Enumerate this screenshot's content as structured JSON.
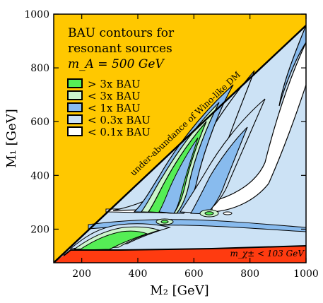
{
  "chart_data": {
    "type": "contour",
    "title_lines": [
      "BAU contours for",
      "resonant sources",
      "m_A = 500 GeV"
    ],
    "xlabel": "M₂ [GeV]",
    "ylabel": "M₁ [GeV]",
    "xlim": [
      100,
      1000
    ],
    "ylim": [
      75,
      1000
    ],
    "xticks": [
      200,
      400,
      600,
      800,
      1000
    ],
    "yticks": [
      200,
      400,
      600,
      800,
      1000
    ],
    "xtick_labels": [
      "200",
      "400",
      "600",
      "800",
      "1000"
    ],
    "ytick_labels": [
      "200",
      "400",
      "600",
      "800",
      "1000"
    ],
    "legend": [
      {
        "label": "> 3x BAU",
        "color": "#55ee55"
      },
      {
        "label": "< 3x BAU",
        "color": "#ccf5cc"
      },
      {
        "label": "< 1x BAU",
        "color": "#88bbee"
      },
      {
        "label": "< 0.3x BAU",
        "color": "#cce2f5"
      },
      {
        "label": "< 0.1x BAU",
        "color": "#ffffff"
      }
    ],
    "excluded_regions": [
      {
        "label": "under-abundance of Wino-like DM",
        "color": "#ffc800",
        "boundary": "M1 > M2"
      },
      {
        "label": "m_χ± < 103 GeV",
        "color": "#ff3b10",
        "boundary": "lightest chargino below 103 GeV"
      }
    ],
    "colors": {
      "allowed_background": "#cce2f5",
      "frame": "#000000"
    },
    "legend_position": "top-left"
  }
}
